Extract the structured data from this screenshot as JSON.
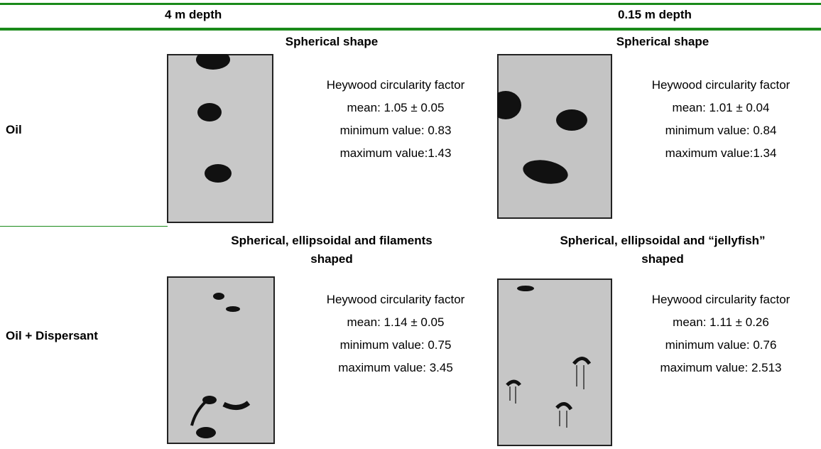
{
  "header": {
    "columns": [
      "4 m depth",
      "0.15 m depth"
    ]
  },
  "rows": [
    {
      "label": "Oil",
      "cells": [
        {
          "shape": [
            "Spherical shape"
          ],
          "lines": [
            "Heywood circularity factor",
            "mean: 1.05 ± 0.05",
            "minimum value: 0.83",
            "maximum value:1.43"
          ]
        },
        {
          "shape": [
            "Spherical shape"
          ],
          "lines": [
            "Heywood circularity factor",
            "mean: 1.01 ± 0.04",
            "minimum value: 0.84",
            "maximum value:1.34"
          ]
        }
      ]
    },
    {
      "label": "Oil + Dispersant",
      "cells": [
        {
          "shape": [
            "Spherical, ellipsoidal and filaments",
            "shaped"
          ],
          "lines": [
            "Heywood circularity factor",
            "mean: 1.14 ± 0.05",
            "minimum value: 0.75",
            "maximum value: 3.45"
          ]
        },
        {
          "shape": [
            "Spherical, ellipsoidal and “jellyfish”",
            "shaped"
          ],
          "lines": [
            "Heywood circularity factor",
            "mean: 1.11 ± 0.26",
            "minimum value: 0.76",
            "maximum value: 2.513"
          ]
        }
      ]
    }
  ]
}
